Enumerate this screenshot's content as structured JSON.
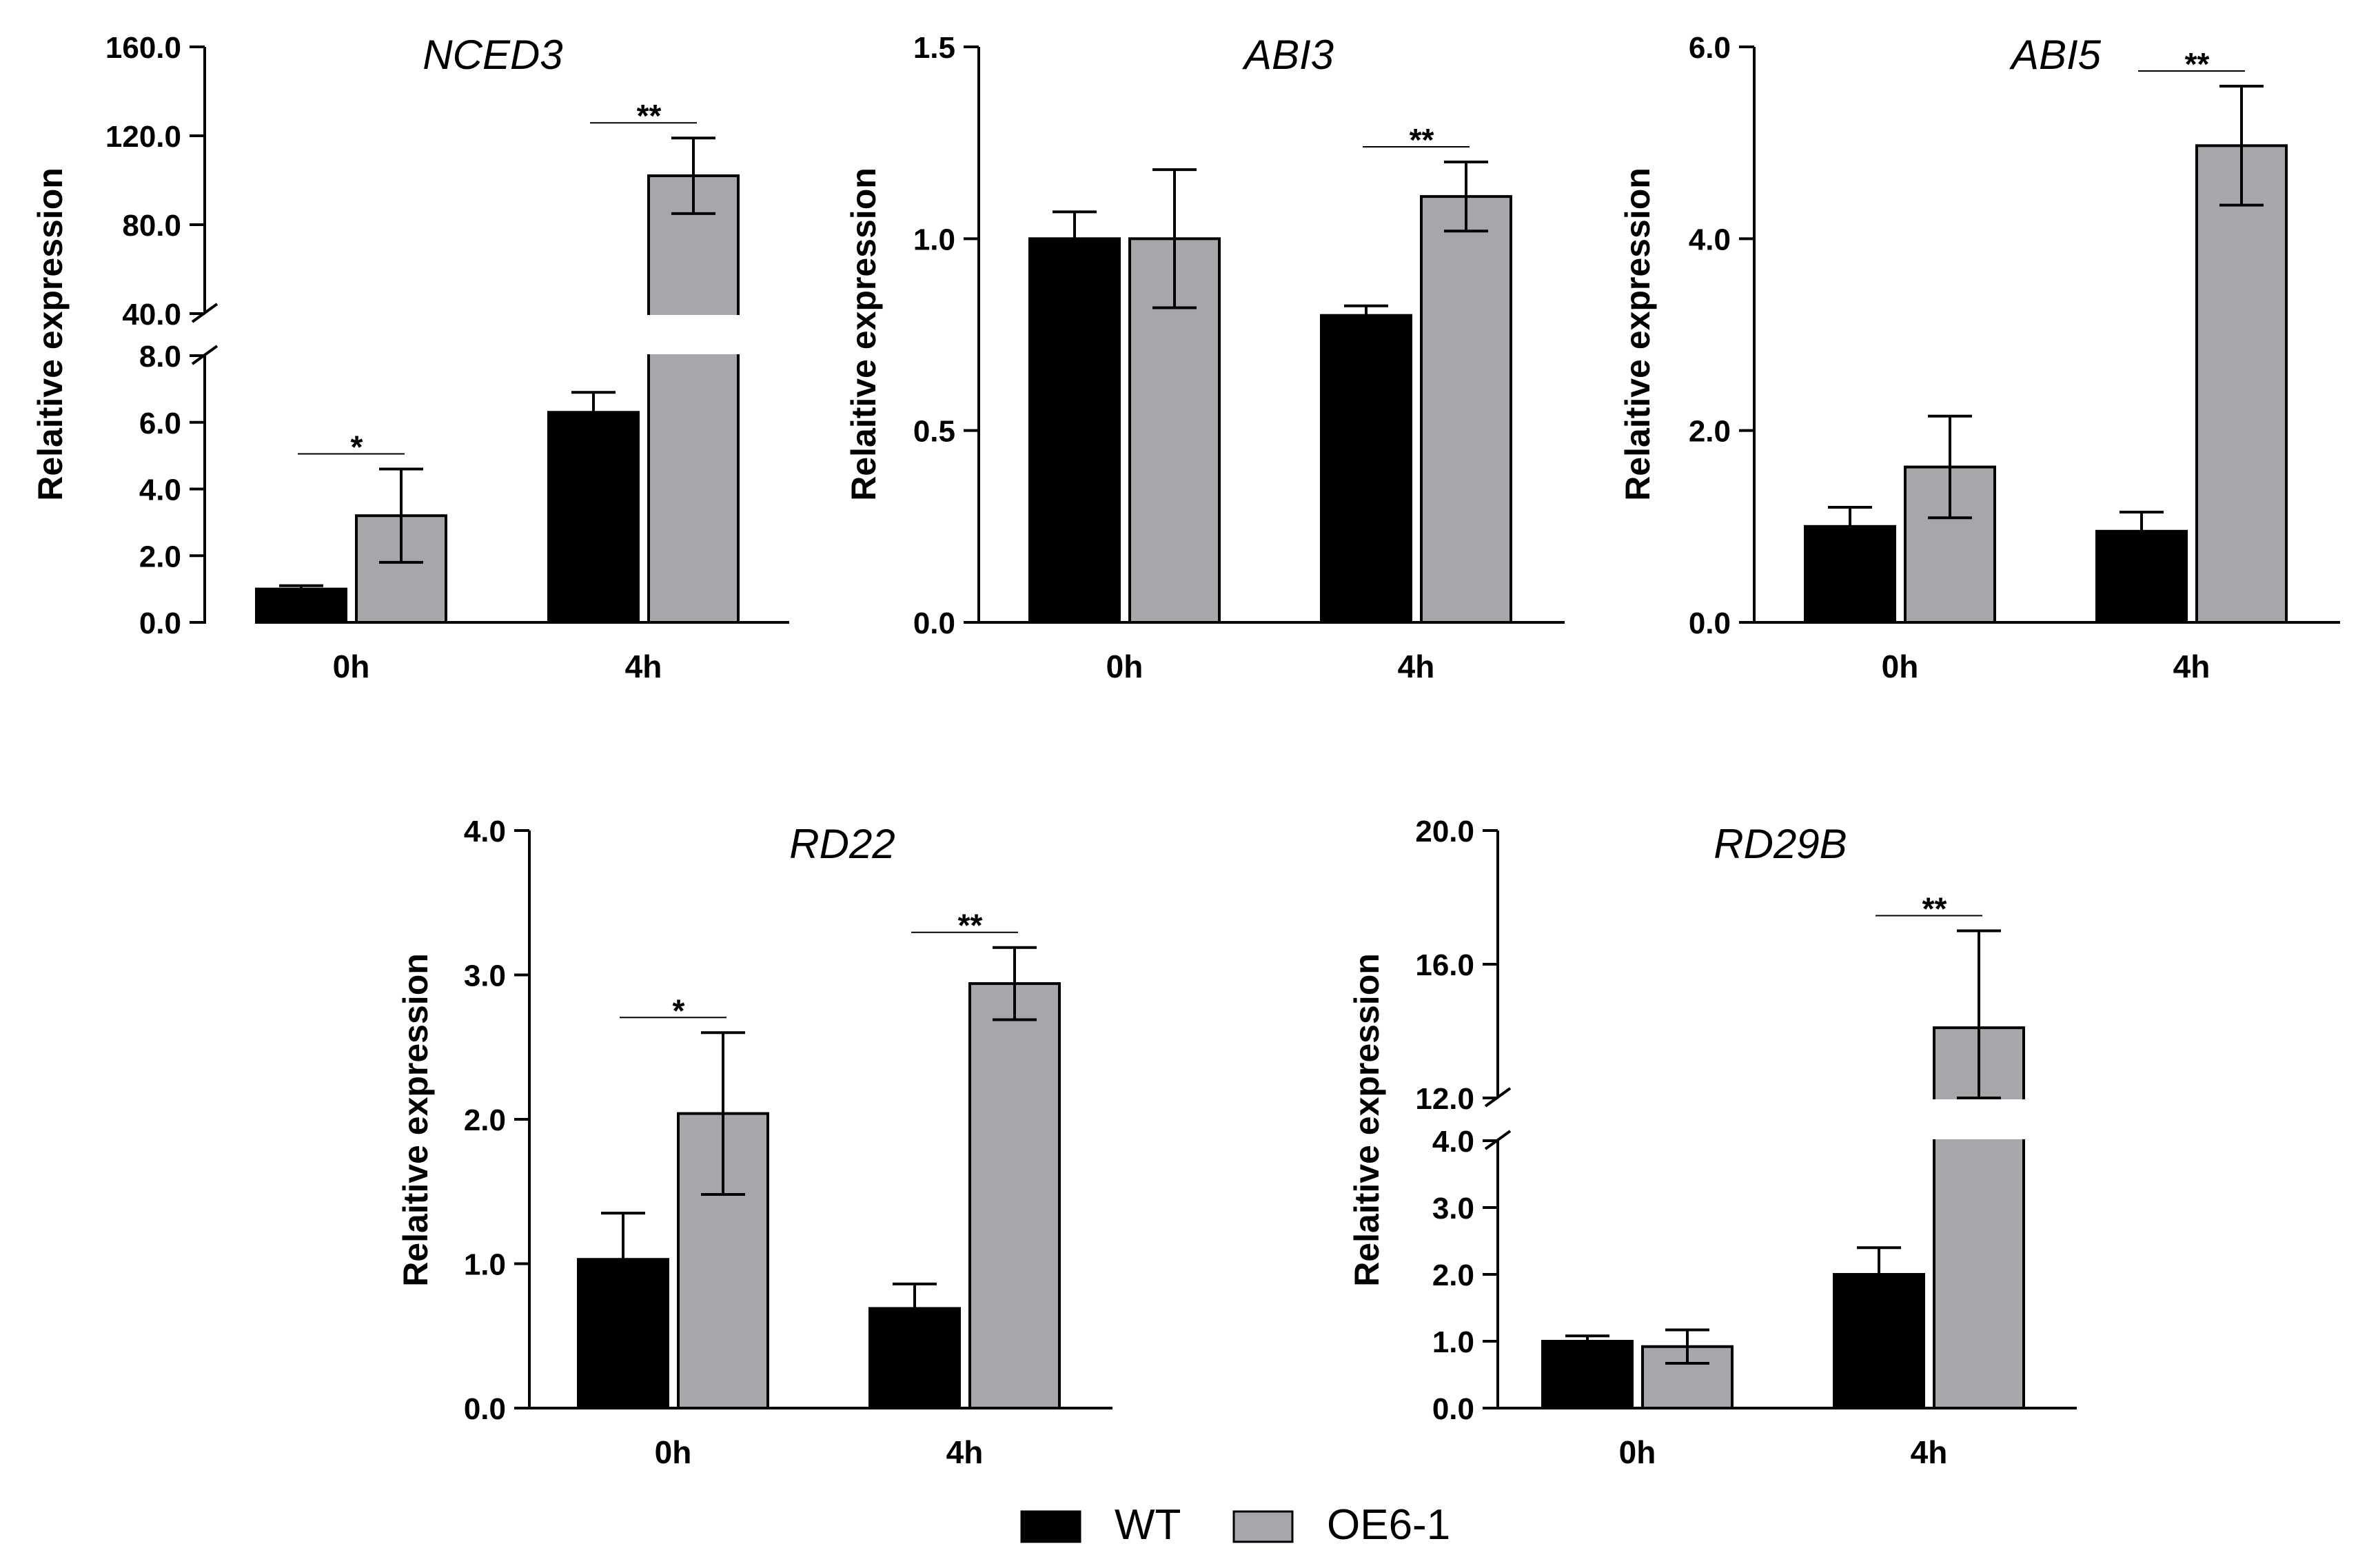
{
  "figure": {
    "ylabel": "Relaitive expression",
    "legend": [
      {
        "name": "WT",
        "color": "#000000"
      },
      {
        "name": "OE6-1",
        "color": "#a7a6ab"
      }
    ]
  },
  "chart_data": [
    {
      "type": "bar",
      "title": "NCED3",
      "ylabel": "Relaitive expression",
      "categories": [
        "0h",
        "4h"
      ],
      "series": [
        {
          "name": "WT",
          "values": [
            1.0,
            6.3
          ],
          "errors": [
            0.1,
            0.6
          ]
        },
        {
          "name": "OE6-1",
          "values": [
            3.2,
            102.0
          ],
          "errors": [
            1.4,
            17.0
          ]
        }
      ],
      "axis_break": {
        "lower": [
          0,
          8
        ],
        "upper": [
          40,
          160
        ]
      },
      "lower_ticks": [
        "0.0",
        "2.0",
        "4.0",
        "6.0",
        "8.0"
      ],
      "upper_ticks": [
        "40.0",
        "80.0",
        "120.0",
        "160.0"
      ],
      "significance": [
        "*",
        "**"
      ]
    },
    {
      "type": "bar",
      "title": "ABI3",
      "ylabel": "Relaitive expression",
      "categories": [
        "0h",
        "4h"
      ],
      "series": [
        {
          "name": "WT",
          "values": [
            1.0,
            0.8
          ],
          "errors": [
            0.07,
            0.025
          ]
        },
        {
          "name": "OE6-1",
          "values": [
            1.0,
            1.11
          ],
          "errors": [
            0.18,
            0.09
          ]
        }
      ],
      "ylim": [
        0,
        1.5
      ],
      "ticks": [
        "0.0",
        "0.5",
        "1.0",
        "1.5"
      ],
      "significance": [
        "",
        "**"
      ]
    },
    {
      "type": "bar",
      "title": "ABI5",
      "ylabel": "Relaitive expression",
      "categories": [
        "0h",
        "4h"
      ],
      "series": [
        {
          "name": "WT",
          "values": [
            1.0,
            0.95
          ],
          "errors": [
            0.2,
            0.2
          ]
        },
        {
          "name": "OE6-1",
          "values": [
            1.62,
            4.97
          ],
          "errors": [
            0.53,
            0.62
          ]
        }
      ],
      "ylim": [
        0,
        6
      ],
      "ticks": [
        "0.0",
        "2.0",
        "4.0",
        "6.0"
      ],
      "significance": [
        "",
        "**"
      ]
    },
    {
      "type": "bar",
      "title": "RD22",
      "ylabel": "Relaitive expression",
      "categories": [
        "0h",
        "4h"
      ],
      "series": [
        {
          "name": "WT",
          "values": [
            1.03,
            0.69
          ],
          "errors": [
            0.32,
            0.17
          ]
        },
        {
          "name": "OE6-1",
          "values": [
            2.04,
            2.94
          ],
          "errors": [
            0.56,
            0.25
          ]
        }
      ],
      "ylim": [
        0,
        4
      ],
      "ticks": [
        "0.0",
        "1.0",
        "2.0",
        "3.0",
        "4.0"
      ],
      "significance": [
        "*",
        "**"
      ]
    },
    {
      "type": "bar",
      "title": "RD29B",
      "ylabel": "Relaitive expression",
      "categories": [
        "0h",
        "4h"
      ],
      "series": [
        {
          "name": "WT",
          "values": [
            1.0,
            2.0
          ],
          "errors": [
            0.08,
            0.4
          ]
        },
        {
          "name": "OE6-1",
          "values": [
            0.92,
            14.1
          ],
          "errors": [
            0.25,
            2.9
          ]
        }
      ],
      "axis_break": {
        "lower": [
          0,
          4
        ],
        "upper": [
          12,
          20
        ]
      },
      "lower_ticks": [
        "0.0",
        "1.0",
        "2.0",
        "3.0",
        "4.0"
      ],
      "upper_ticks": [
        "12.0",
        "16.0",
        "20.0"
      ],
      "significance": [
        "",
        "**"
      ]
    }
  ]
}
